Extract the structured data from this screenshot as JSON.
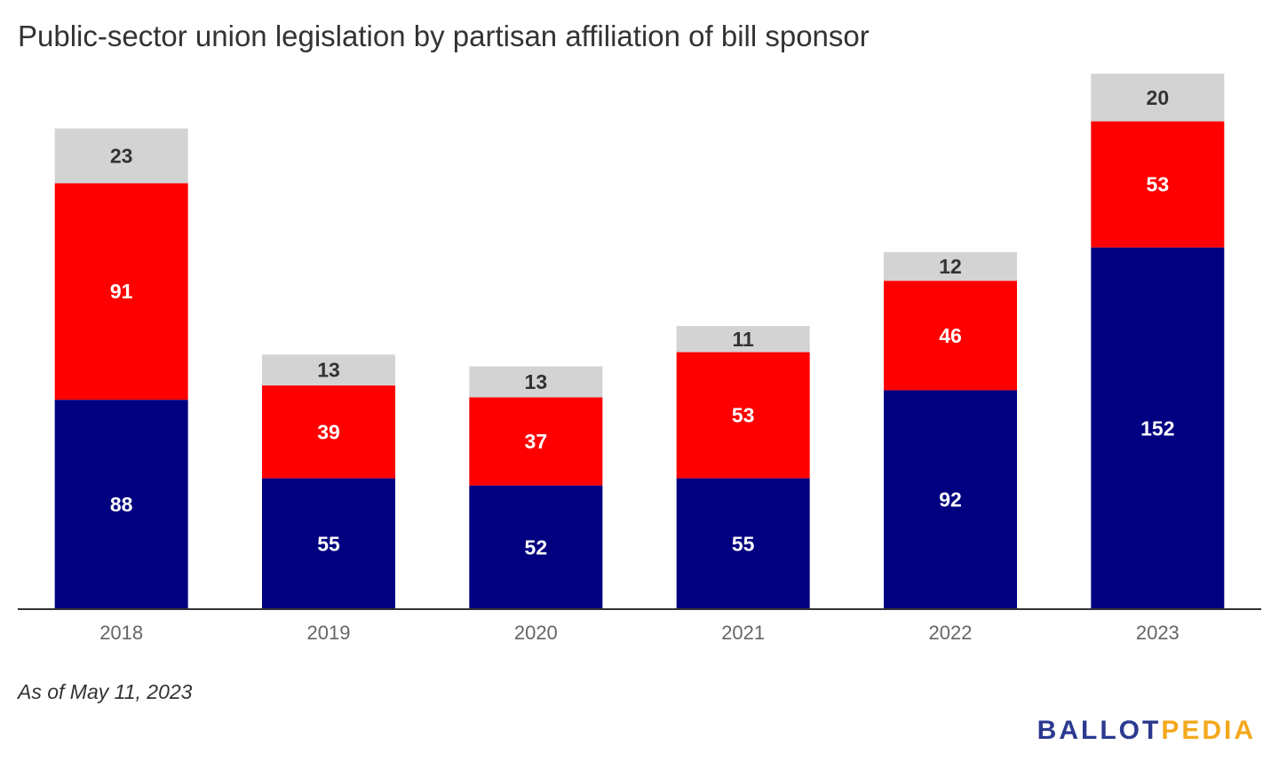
{
  "chart_data": {
    "type": "bar",
    "stacked": true,
    "title": "Public-sector union legislation by partisan affiliation of bill sponsor",
    "categories": [
      "2018",
      "2019",
      "2020",
      "2021",
      "2022",
      "2023"
    ],
    "series": [
      {
        "values": [
          88,
          55,
          52,
          55,
          92,
          152
        ],
        "color": "#000080",
        "label_color": "#ffffff"
      },
      {
        "values": [
          91,
          39,
          37,
          53,
          46,
          53
        ],
        "color": "#ff0000",
        "label_color": "#ffffff"
      },
      {
        "values": [
          23,
          13,
          13,
          11,
          12,
          20
        ],
        "color": "#d3d3d3",
        "label_color": "#333333"
      }
    ],
    "ylim": [
      0,
      225
    ],
    "grid": false,
    "legend": "none",
    "note": "As of May 11, 2023"
  },
  "brand": {
    "part1": "BALLOT",
    "part2": "PEDIA",
    "color1": "#2b3990",
    "color2": "#f4a81d"
  }
}
